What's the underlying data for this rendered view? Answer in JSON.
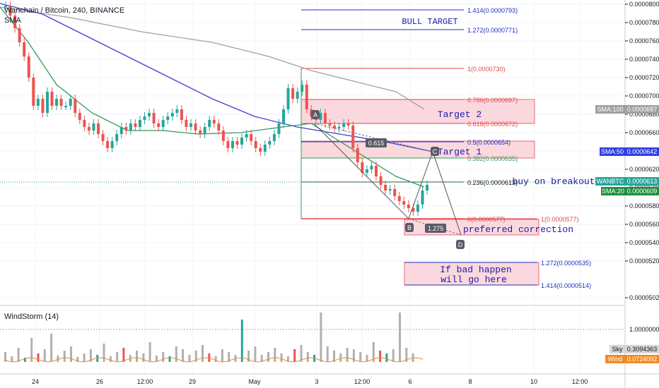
{
  "header": {
    "symbol_line": "Wanchain / Bitcoin, 240, BINANCE",
    "indicator_line": "SMA"
  },
  "indicator_pane": {
    "title": "WindStorm (14)"
  },
  "annotations": {
    "bull_target": "BULL TARGET",
    "target2": "Target 2",
    "target1": "Target 1",
    "buy_on_breakout": "buy on breakout",
    "preferred_correction": "preferred correction",
    "bad_line1": "If bad happen",
    "bad_line2": "will go here"
  },
  "points": {
    "A": "A",
    "B": "B",
    "C": "C",
    "D": "D"
  },
  "ratio_labels": {
    "r1": "0.615",
    "r2": "1.275"
  },
  "fib_levels": {
    "f1414": "1.414(0.0000793)",
    "f1272": "1.272(0.0000771)",
    "f1": "1(0.0000730)",
    "f786": "0.786(0.0000697)",
    "f618": "0.618(0.0000672)",
    "f5": "0.5(0.0000654)",
    "f382": "0.382(0.0000635)",
    "f236": "0.236(0.0000613)",
    "f0": "0(0.0000577)",
    "f1b": "1(0.0000577)",
    "f1272b": "1.272(0.0000535)",
    "f1414b": "1.414(0.0000514)"
  },
  "price_tags": {
    "sma100_name": "SMA:100",
    "sma100_value": "0.0000687",
    "sma50_name": "SMA:50",
    "sma50_value": "0.0000642",
    "symbol_name": "WANBTC",
    "symbol_value": "0.0000613",
    "sma20_name": "SMA:20",
    "sma20_value": "0.0000609",
    "sky_name": "Sky",
    "sky_value": "0.3094363",
    "wind_name": "Wind",
    "wind_value": "0.0724092"
  },
  "colors": {
    "up": "#26a69a",
    "down": "#ef5350",
    "sma20": "#2e9e5a",
    "sma50": "#3f3fd6",
    "sma100": "#a0a0a0",
    "fib_blue": "#1f2fbf",
    "fib_red": "#e04a4a",
    "zone_fill": "#fbd8dd",
    "note": "#1a1aa8",
    "wind": "#f08a24",
    "sky_bar": "#b0b0b0"
  },
  "chart_data": {
    "type": "candlestick",
    "symbol": "WANBTC",
    "timeframe": "240",
    "exchange": "BINANCE",
    "y_axis": {
      "min": 5e-05,
      "max": 8e-05,
      "ticks": [
        "0.0000800",
        "0.0000780",
        "0.0000760",
        "0.0000740",
        "0.0000720",
        "0.0000700",
        "0.0000680",
        "0.0000660",
        "0.0000640",
        "0.0000620",
        "0.0000600",
        "0.0000580",
        "0.0000560",
        "0.0000540",
        "0.0000520",
        "0.0000502"
      ]
    },
    "indicator_y_ticks": [
      "1.0000000"
    ],
    "x_ticks": [
      "24",
      "26",
      "12:00",
      "29",
      "May",
      "3",
      "12:00",
      "6",
      "8",
      "10",
      "12:00"
    ],
    "last_price": 6.13e-05,
    "sma_periods": [
      20,
      50,
      100
    ],
    "indicator": {
      "name": "WindStorm",
      "period": 14,
      "sky_last": 0.3094363,
      "wind_last": 0.0724092
    }
  }
}
